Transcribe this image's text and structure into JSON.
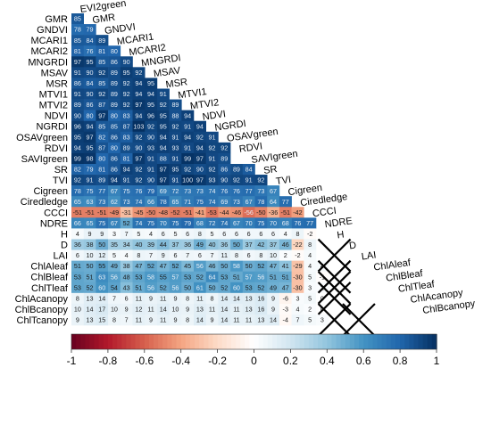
{
  "chart_data": {
    "type": "heatmap",
    "variables": [
      "EVI2green",
      "GMR",
      "GNDVI",
      "MCARI1",
      "MCARI2",
      "MNGRDI",
      "MSAV",
      "MSR",
      "MTVI1",
      "MTVI2",
      "NDVI",
      "NGRDI",
      "OSAVgreen",
      "RDVI",
      "SAVIgreen",
      "SR",
      "TVI",
      "Cigreen",
      "Ciredledge",
      "CCCI",
      "NDRE",
      "H",
      "D",
      "LAI",
      "ChlAleaf",
      "ChlBleaf",
      "ChlTleaf",
      "ChlAcanopy",
      "ChlBcanopy",
      "ChlTcanopy"
    ],
    "row_labels": [
      "GMR",
      "GNDVI",
      "MCARI1",
      "MCARI2",
      "MNGRDI",
      "MSAV",
      "MSR",
      "MTVI1",
      "MTVI2",
      "NDVI",
      "NGRDI",
      "OSAVgreen",
      "RDVI",
      "SAVIgreen",
      "SR",
      "TVI",
      "Cigreen",
      "Ciredledge",
      "CCCI",
      "NDRE",
      "H",
      "D",
      "LAI",
      "ChlAleaf",
      "ChlBleaf",
      "ChlTleaf",
      "ChlAcanopy",
      "ChlBcanopy",
      "ChlTcanopy"
    ],
    "diagonal_labels": [
      "EVI2green",
      "GMR",
      "GNDVI",
      "MCARI1",
      "MCARI2",
      "MNGRDI",
      "MSAV",
      "MSR",
      "MTVI1",
      "MTVI2",
      "NDVI",
      "NGRDI",
      "OSAVgreen",
      "RDVI",
      "SAVIgreen",
      "SR",
      "TVI",
      "Cigreen",
      "Ciredledge",
      "CCCI",
      "NDRE",
      "H",
      "D",
      "LAI",
      "ChlAleaf",
      "ChlBleaf",
      "ChlTleaf",
      "ChlAcanopy",
      "ChlBcanopy"
    ],
    "values_x100": [
      [
        85
      ],
      [
        78,
        79
      ],
      [
        85,
        84,
        89
      ],
      [
        81,
        76,
        81,
        80
      ],
      [
        97,
        95,
        85,
        86,
        90
      ],
      [
        91,
        90,
        92,
        89,
        95,
        92
      ],
      [
        86,
        84,
        85,
        89,
        92,
        94,
        95
      ],
      [
        91,
        90,
        92,
        89,
        92,
        94,
        94,
        91
      ],
      [
        89,
        86,
        87,
        89,
        92,
        97,
        95,
        92,
        89
      ],
      [
        90,
        80,
        97,
        80,
        83,
        94,
        96,
        95,
        88,
        94
      ],
      [
        96,
        94,
        85,
        85,
        87,
        103,
        92,
        95,
        92,
        91,
        94
      ],
      [
        95,
        97,
        82,
        86,
        83,
        92,
        90,
        94,
        91,
        94,
        92,
        91
      ],
      [
        94,
        95,
        87,
        80,
        89,
        90,
        93,
        94,
        93,
        91,
        94,
        92,
        92
      ],
      [
        99,
        98,
        80,
        86,
        81,
        97,
        91,
        88,
        91,
        99,
        97,
        91,
        89
      ],
      [
        82,
        79,
        81,
        86,
        94,
        92,
        91,
        97,
        95,
        92,
        90,
        92,
        86,
        89,
        84
      ],
      [
        92,
        91,
        89,
        94,
        91,
        92,
        90,
        97,
        91,
        100,
        97,
        93,
        90,
        92,
        91,
        92
      ],
      [
        78,
        75,
        77,
        67,
        75,
        76,
        79,
        69,
        72,
        73,
        73,
        74,
        76,
        76,
        77,
        73,
        67
      ],
      [
        65,
        63,
        73,
        62,
        73,
        74,
        66,
        78,
        65,
        71,
        75,
        74,
        69,
        73,
        67,
        78,
        64,
        77
      ],
      [
        -51,
        -51,
        -51,
        -49,
        -31,
        -45,
        -50,
        -48,
        -52,
        -51,
        -41,
        -53,
        -44,
        -46,
        -56,
        -50,
        -36,
        -51,
        -42
      ],
      [
        66,
        65,
        75,
        67,
        52,
        74,
        75,
        70,
        75,
        79,
        68,
        72,
        74,
        67,
        70,
        75,
        70,
        68,
        76,
        77
      ],
      [
        4,
        9,
        9,
        3,
        7,
        5,
        4,
        6,
        5,
        6,
        8,
        5,
        6,
        6,
        6,
        6,
        6,
        4,
        8,
        -2
      ],
      [
        36,
        38,
        50,
        35,
        34,
        40,
        39,
        44,
        37,
        36,
        49,
        40,
        36,
        50,
        37,
        42,
        37,
        46,
        -22,
        8
      ],
      [
        6,
        10,
        12,
        5,
        4,
        8,
        7,
        9,
        6,
        7,
        6,
        7,
        11,
        8,
        6,
        8,
        10,
        2,
        -2,
        4
      ],
      [
        51,
        50,
        55,
        49,
        38,
        47,
        52,
        47,
        52,
        45,
        56,
        46,
        50,
        58,
        50,
        52,
        47,
        41,
        -29,
        4,
        4
      ],
      [
        53,
        51,
        63,
        56,
        48,
        53,
        58,
        55,
        57,
        53,
        52,
        64,
        53,
        51,
        57,
        56,
        51,
        51,
        -30,
        5,
        -1
      ],
      [
        53,
        52,
        60,
        54,
        43,
        51,
        56,
        52,
        56,
        50,
        61,
        50,
        52,
        60,
        53,
        52,
        49,
        47,
        -30,
        3,
        2
      ],
      [
        8,
        13,
        14,
        7,
        6,
        11,
        9,
        11,
        9,
        8,
        11,
        8,
        14,
        14,
        13,
        16,
        9,
        -6,
        3,
        5,
        0
      ],
      [
        10,
        14,
        17,
        10,
        9,
        12,
        11,
        14,
        10,
        9,
        13,
        11,
        14,
        11,
        13,
        16,
        9,
        -3,
        4,
        2,
        0
      ],
      [
        9,
        13,
        15,
        8,
        7,
        11,
        9,
        11,
        9,
        8,
        14,
        9,
        14,
        11,
        11,
        13,
        14,
        -4,
        7,
        5,
        3
      ]
    ],
    "crossed_cells": [
      [
        22,
        21
      ],
      [
        24,
        21
      ],
      [
        25,
        21
      ],
      [
        26,
        21
      ],
      [
        28,
        21
      ],
      [
        28,
        23
      ]
    ],
    "colorbar": {
      "ticks": [
        -1,
        -0.8,
        -0.6,
        -0.4,
        -0.2,
        0,
        0.2,
        0.4,
        0.6,
        0.8,
        1
      ],
      "tick_labels": [
        "-1",
        "-0.8",
        "-0.6",
        "-0.4",
        "-0.2",
        "0",
        "0.2",
        "0.4",
        "0.6",
        "0.8",
        "1"
      ],
      "range": [
        -1,
        1
      ]
    },
    "colors": {
      "negative": "#67001f",
      "mid": "#ffffff",
      "positive": "#053061"
    }
  }
}
